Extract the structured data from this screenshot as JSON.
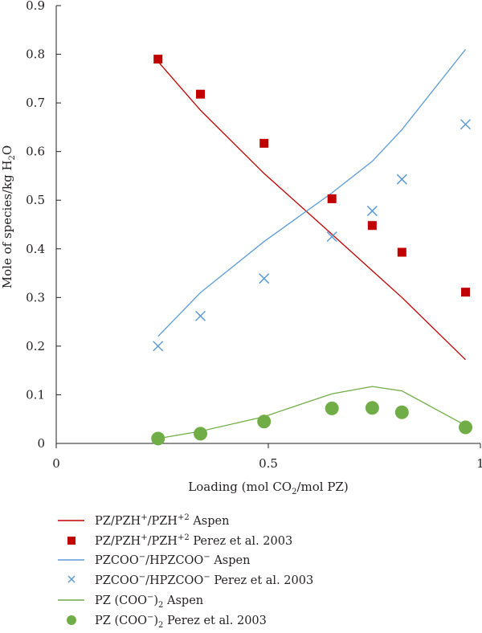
{
  "chart_data": {
    "type": "scatter",
    "title": "",
    "xlabel": "Loading (mol CO2/mol PZ)",
    "ylabel": "Mole of species/kg H2O",
    "xlim": [
      0,
      1
    ],
    "ylim": [
      0,
      0.9
    ],
    "x_ticks": [
      "0",
      "0.5",
      "1"
    ],
    "y_ticks": [
      "0",
      "0.1",
      "0.2",
      "0.3",
      "0.4",
      "0.5",
      "0.6",
      "0.7",
      "0.8",
      "0.9"
    ],
    "grid": false,
    "legend_position": "bottom",
    "series": [
      {
        "name": "PZ/PZH+/PZH+2 Aspen",
        "style": "line",
        "color": "#c00000",
        "x": [
          0.24,
          0.34,
          0.49,
          0.65,
          0.745,
          0.815,
          0.965
        ],
        "y": [
          0.785,
          0.685,
          0.555,
          0.43,
          0.355,
          0.3,
          0.172
        ]
      },
      {
        "name": "PZ/PZH+/PZH+2 Perez et al. 2003",
        "style": "square",
        "color": "#c00000",
        "x": [
          0.24,
          0.34,
          0.49,
          0.65,
          0.745,
          0.815,
          0.965
        ],
        "y": [
          0.79,
          0.718,
          0.617,
          0.503,
          0.448,
          0.393,
          0.311
        ]
      },
      {
        "name": "PZCOO−/HPZCOO− Aspen",
        "style": "line",
        "color": "#5b9bd5",
        "x": [
          0.24,
          0.34,
          0.49,
          0.65,
          0.745,
          0.815,
          0.965
        ],
        "y": [
          0.22,
          0.31,
          0.415,
          0.515,
          0.58,
          0.645,
          0.81
        ]
      },
      {
        "name": "PZCOO−/HPZCOO− Perez et al. 2003",
        "style": "cross",
        "color": "#5b9bd5",
        "x": [
          0.24,
          0.34,
          0.49,
          0.65,
          0.745,
          0.815,
          0.965
        ],
        "y": [
          0.2,
          0.262,
          0.339,
          0.425,
          0.478,
          0.543,
          0.656
        ]
      },
      {
        "name": "PZ (COO−)2 Aspen",
        "style": "line",
        "color": "#70ad47",
        "x": [
          0.24,
          0.34,
          0.49,
          0.65,
          0.745,
          0.815,
          0.965
        ],
        "y": [
          0.01,
          0.025,
          0.055,
          0.102,
          0.117,
          0.108,
          0.037
        ]
      },
      {
        "name": "PZ (COO−)2 Perez et al. 2003",
        "style": "circle",
        "color": "#70ad47",
        "x": [
          0.24,
          0.34,
          0.49,
          0.65,
          0.745,
          0.815,
          0.965
        ],
        "y": [
          0.01,
          0.02,
          0.045,
          0.072,
          0.073,
          0.064,
          0.033
        ]
      }
    ]
  }
}
